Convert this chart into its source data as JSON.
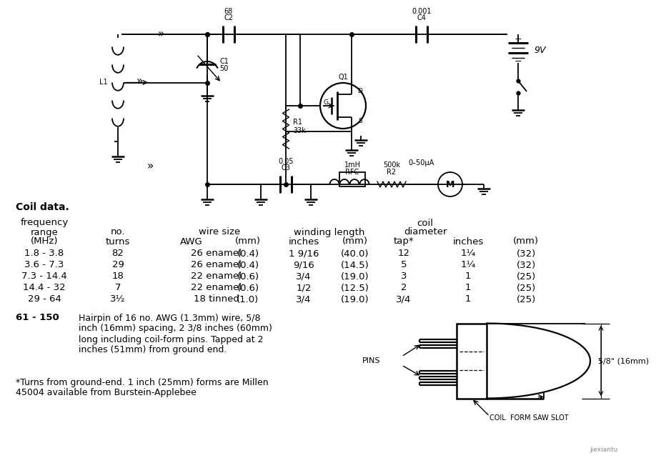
{
  "bg_color": "#ffffff",
  "coil_data_label": "Coil data.",
  "rows": [
    [
      "1.8 - 3.8",
      "82",
      "26 enamel",
      "(0.4)",
      "1 9/16",
      "(40.0)",
      "12",
      "1¼",
      "(32)"
    ],
    [
      "3.6 - 7.3",
      "29",
      "26 enamel",
      "(0.4)",
      "9/16",
      "(14.5)",
      "5",
      "1¼",
      "(32)"
    ],
    [
      "7.3 - 14.4",
      "18",
      "22 enamel",
      "(0.6)",
      "3/4",
      "(19.0)",
      "3",
      "1",
      "(25)"
    ],
    [
      "14.4 - 32",
      "7",
      "22 enamel",
      "(0.6)",
      "1/2",
      "(12.5)",
      "2",
      "1",
      "(25)"
    ],
    [
      "29 - 64",
      "3½",
      "18 tinned",
      "(1.0)",
      "3/4",
      "(19.0)",
      "3/4",
      "1",
      "(25)"
    ]
  ],
  "hairpin_bold": "61 - 150",
  "hairpin_lines": [
    "Hairpin of 16 no. AWG (1.3mm) wire, 5/8",
    "inch (16mm) spacing, 2 3/8 inches (60mm)",
    "long including coil-form pins. Tapped at 2",
    "inches (51mm) from ground end."
  ],
  "footnote1": "*Turns from ground-end. 1 inch (25mm) forms are Millen",
  "footnote2": "45004 available from Burstein-Applebee",
  "coil_label": "COIL  FORM SAW SLOT",
  "pins_label": "PINS",
  "dim_label": "5/8\" (16mm)"
}
